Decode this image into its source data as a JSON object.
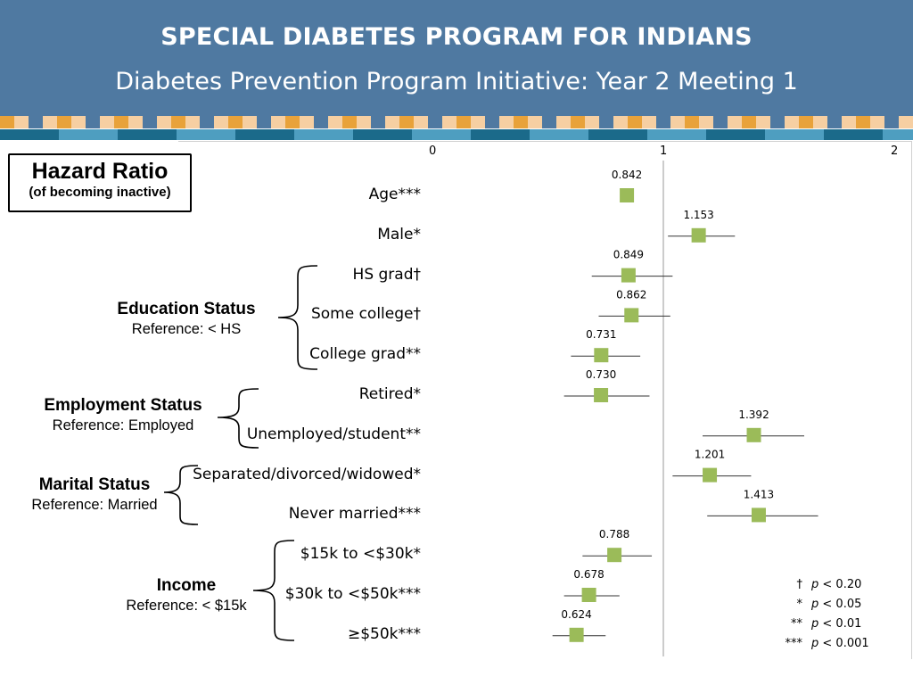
{
  "header": {
    "title": "SPECIAL DIABETES PROGRAM FOR INDIANS",
    "subtitle": "Diabetes Prevention Program Initiative:  Year 2 Meeting 1",
    "bg_color": "#4f79a1"
  },
  "hazard_box": {
    "title": "Hazard Ratio",
    "subtitle": "(of becoming inactive)"
  },
  "groups": [
    {
      "name": "Education Status",
      "reference": "Reference: < HS"
    },
    {
      "name": "Employment Status",
      "reference": "Reference: Employed"
    },
    {
      "name": "Marital Status",
      "reference": "Reference: Married"
    },
    {
      "name": "Income",
      "reference": "Reference: < $15k"
    }
  ],
  "chart_data": {
    "type": "scatter",
    "subtype": "forest-plot",
    "x_ticks": [
      "0",
      "1",
      "2"
    ],
    "xlim": [
      0,
      2
    ],
    "reference_line": 1,
    "marker_color": "#9bbb59",
    "rows": [
      {
        "label": "Age***",
        "value": 0.842,
        "value_label": "0.842",
        "ci": [
          0.82,
          0.87
        ]
      },
      {
        "label": "Male*",
        "value": 1.153,
        "value_label": "1.153",
        "ci": [
          1.02,
          1.31
        ]
      },
      {
        "label": "HS grad†",
        "value": 0.849,
        "value_label": "0.849",
        "ci": [
          0.69,
          1.04
        ]
      },
      {
        "label": "Some college†",
        "value": 0.862,
        "value_label": "0.862",
        "ci": [
          0.72,
          1.03
        ]
      },
      {
        "label": "College grad**",
        "value": 0.731,
        "value_label": "0.731",
        "ci": [
          0.6,
          0.9
        ]
      },
      {
        "label": "Retired*",
        "value": 0.73,
        "value_label": "0.730",
        "ci": [
          0.57,
          0.94
        ]
      },
      {
        "label": "Unemployed/student**",
        "value": 1.392,
        "value_label": "1.392",
        "ci": [
          1.17,
          1.61
        ]
      },
      {
        "label": "Separated/divorced/widowed*",
        "value": 1.201,
        "value_label": "1.201",
        "ci": [
          1.04,
          1.38
        ]
      },
      {
        "label": "Never married***",
        "value": 1.413,
        "value_label": "1.413",
        "ci": [
          1.19,
          1.67
        ]
      },
      {
        "label": "$15k to <$30k*",
        "value": 0.788,
        "value_label": "0.788",
        "ci": [
          0.65,
          0.95
        ]
      },
      {
        "label": "$30k to <$50k***",
        "value": 0.678,
        "value_label": "0.678",
        "ci": [
          0.57,
          0.81
        ]
      },
      {
        "label": "≥$50k***",
        "value": 0.624,
        "value_label": "0.624",
        "ci": [
          0.52,
          0.75
        ]
      }
    ],
    "legend": [
      {
        "symbol": "†",
        "p": "p",
        "text": " < 0.20"
      },
      {
        "symbol": "*",
        "p": "p",
        "text": " < 0.05"
      },
      {
        "symbol": "**",
        "p": "p",
        "text": " < 0.01"
      },
      {
        "symbol": "***",
        "p": "p",
        "text": " < 0.001"
      }
    ]
  }
}
